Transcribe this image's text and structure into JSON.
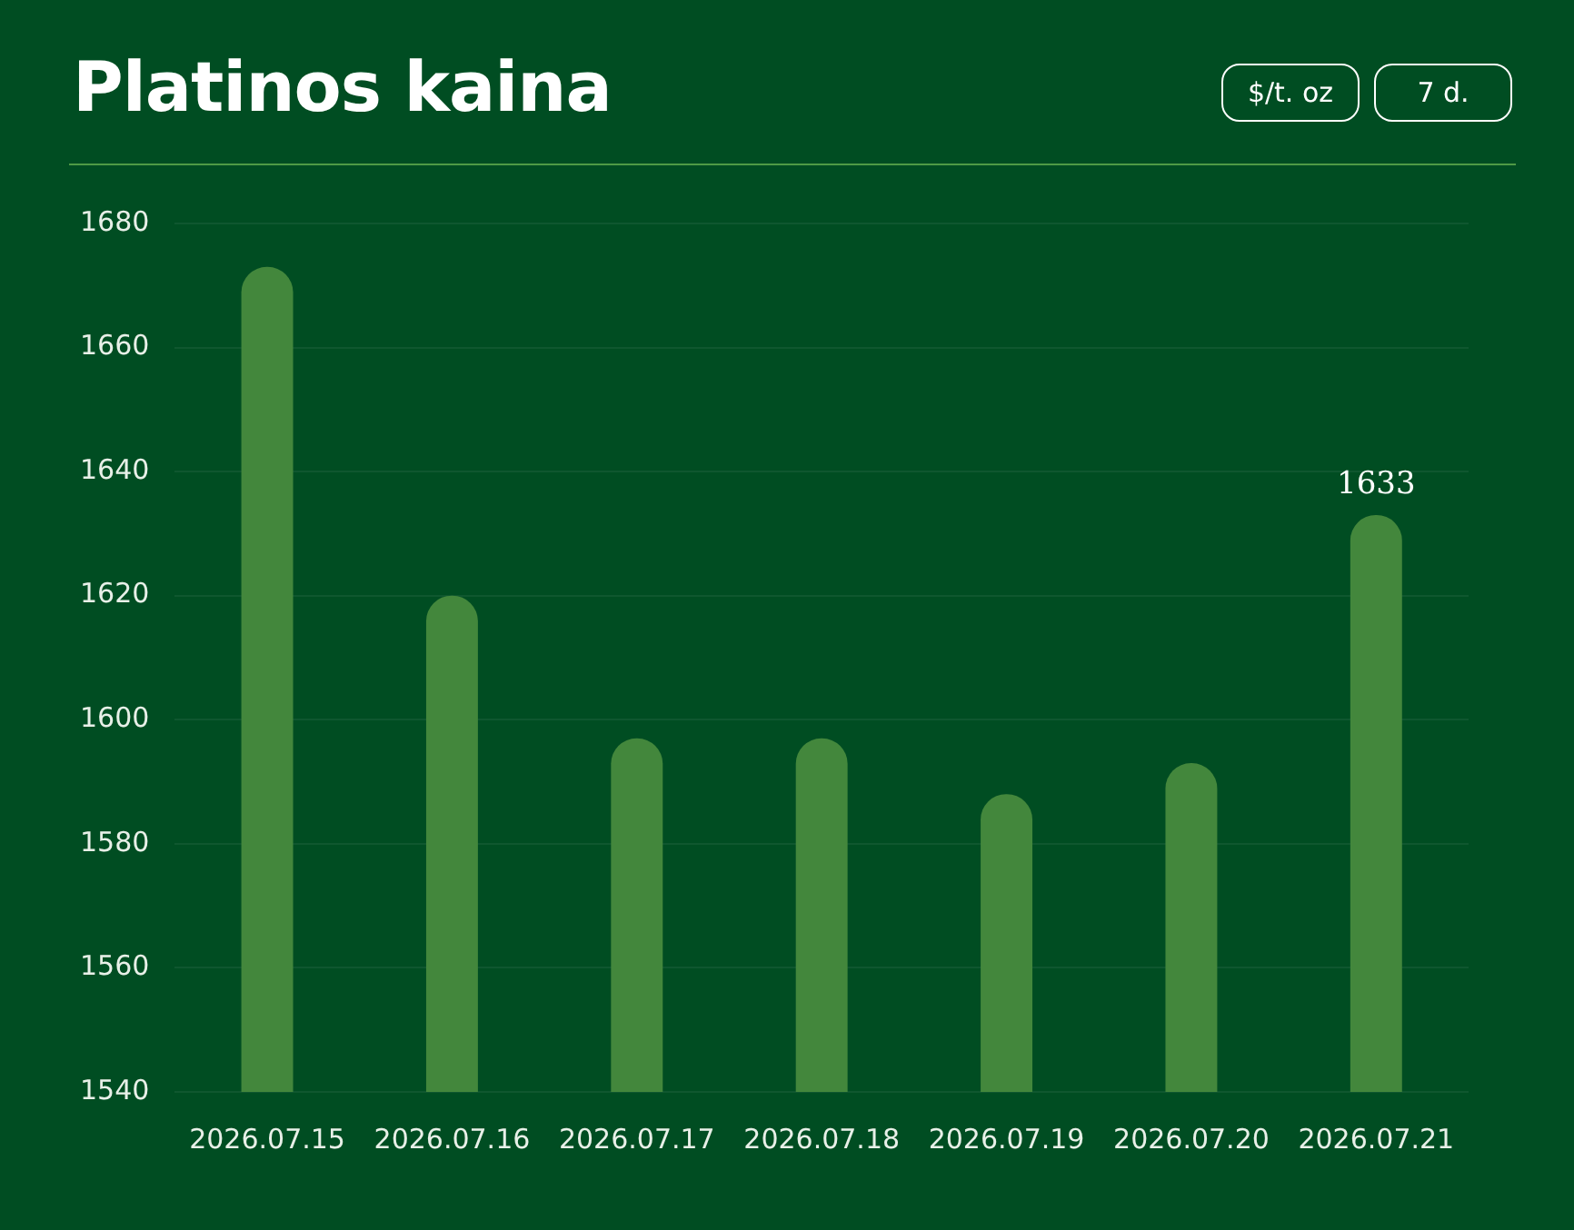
{
  "chart_data": {
    "type": "bar",
    "title": "Platinos kaina",
    "annotations": [
      "$/t. oz",
      "7 d."
    ],
    "categories": [
      "2026.07.15",
      "2026.07.16",
      "2026.07.17",
      "2026.07.18",
      "2026.07.19",
      "2026.07.20",
      "2026.07.21"
    ],
    "values": [
      1673,
      1620,
      1597,
      1597,
      1588,
      1593,
      1633
    ],
    "value_labels": [
      null,
      null,
      null,
      null,
      null,
      null,
      "1633"
    ],
    "color": "#43873c",
    "ylim": [
      1540,
      1680
    ],
    "yticks": [
      1540,
      1560,
      1580,
      1600,
      1620,
      1640,
      1660,
      1680
    ],
    "grid": "y",
    "legend": false
  }
}
